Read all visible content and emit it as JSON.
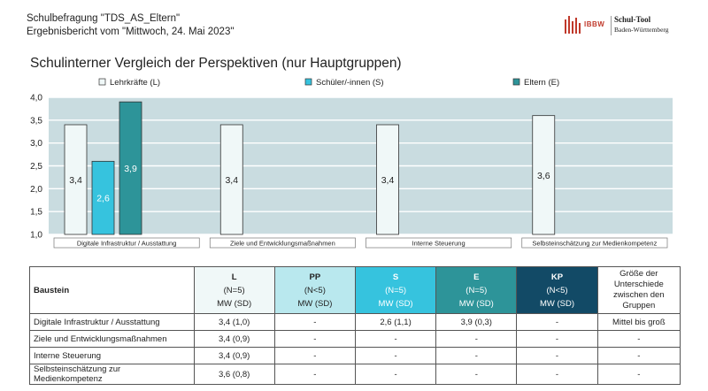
{
  "header": {
    "line1": "Schulbefragung \"TDS_AS_Eltern\"",
    "line2": "Ergebnisbericht vom \"Mittwoch, 24. Mai 2023\""
  },
  "logo": {
    "mark": "IBBW",
    "title": "Schul-Tool",
    "subtitle": "Baden-Württemberg",
    "color": "#c0392b"
  },
  "chart_data": {
    "type": "bar",
    "title": "Schulinterner Vergleich der Perspektiven (nur Hauptgruppen)",
    "categories": [
      "Digitale Infrastruktur / Ausstattung",
      "Ziele und Entwicklungsmaßnahmen",
      "Interne Steuerung",
      "Selbsteinschätzung zur Medienkompetenz"
    ],
    "series": [
      {
        "name": "Lehrkräfte (L)",
        "color": "#f0f8f8",
        "values": [
          3.4,
          3.4,
          3.4,
          3.6
        ],
        "labels": [
          "3,4",
          "3,4",
          "3,4",
          "3,6"
        ]
      },
      {
        "name": "Schüler/-innen (S)",
        "color": "#36c3de",
        "values": [
          2.6,
          null,
          null,
          null
        ],
        "labels": [
          "2,6",
          "",
          "",
          ""
        ]
      },
      {
        "name": "Eltern (E)",
        "color": "#2d9499",
        "values": [
          3.9,
          null,
          null,
          null
        ],
        "labels": [
          "3,9",
          "",
          "",
          ""
        ]
      }
    ],
    "ylim": [
      1.0,
      4.0
    ],
    "yticks": [
      "1,0",
      "1,5",
      "2,0",
      "2,5",
      "3,0",
      "3,5",
      "4,0"
    ],
    "grid": true,
    "legend": "top",
    "plot_bg": "#c9dce0"
  },
  "table": {
    "corner": "Baustein",
    "columns": [
      {
        "code": "L",
        "n": "(N=5)",
        "stat": "MW (SD)",
        "bg": "#f0f8f8",
        "fg": "#222222"
      },
      {
        "code": "PP",
        "n": "(N<5)",
        "stat": "MW (SD)",
        "bg": "#b9e8ee",
        "fg": "#222222"
      },
      {
        "code": "S",
        "n": "(N=5)",
        "stat": "MW (SD)",
        "bg": "#36c3de",
        "fg": "#ffffff"
      },
      {
        "code": "E",
        "n": "(N=5)",
        "stat": "MW (SD)",
        "bg": "#2d9499",
        "fg": "#ffffff"
      },
      {
        "code": "KP",
        "n": "(N<5)",
        "stat": "MW (SD)",
        "bg": "#124a66",
        "fg": "#ffffff"
      }
    ],
    "last_col": "Größe der Unterschiede zwischen den Gruppen",
    "rows": [
      {
        "baustein": "Digitale Infrastruktur / Ausstattung",
        "values": [
          "3,4 (1,0)",
          "-",
          "2,6 (1,1)",
          "3,9 (0,3)",
          "-"
        ],
        "diff": "Mittel bis groß"
      },
      {
        "baustein": "Ziele und Entwicklungsmaßnahmen",
        "values": [
          "3,4 (0,9)",
          "-",
          "-",
          "-",
          "-"
        ],
        "diff": "-"
      },
      {
        "baustein": "Interne Steuerung",
        "values": [
          "3,4 (0,9)",
          "-",
          "-",
          "-",
          "-"
        ],
        "diff": "-"
      },
      {
        "baustein": "Selbsteinschätzung zur Medienkompetenz",
        "values": [
          "3,6 (0,8)",
          "-",
          "-",
          "-",
          "-"
        ],
        "diff": "-"
      }
    ]
  }
}
